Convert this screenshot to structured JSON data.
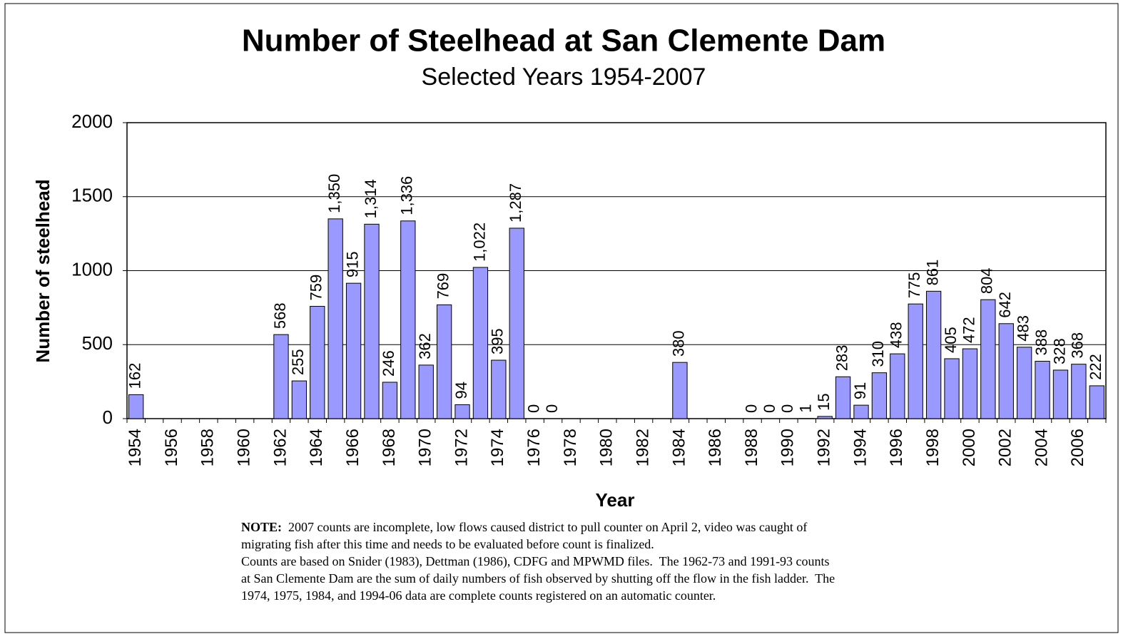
{
  "chart_data": {
    "type": "bar",
    "title": "Number of Steelhead at San Clemente Dam",
    "subtitle": "Selected Years 1954-2007",
    "y_label": "Number of steelhead",
    "x_label": "Year",
    "categories": [
      "1954",
      null,
      "1956",
      null,
      "1958",
      null,
      "1960",
      null,
      "1962",
      null,
      "1964",
      null,
      "1966",
      null,
      "1968",
      null,
      "1970",
      null,
      "1972",
      null,
      "1974",
      null,
      "1976",
      null,
      "1978",
      null,
      "1980",
      null,
      "1982",
      null,
      "1984",
      null,
      "1986",
      null,
      "1988",
      null,
      "1990",
      null,
      "1992",
      null,
      "1994",
      null,
      "1996",
      null,
      "1998",
      null,
      "2000",
      null,
      "2002",
      null,
      "2004",
      null,
      "2006",
      null
    ],
    "values": [
      162,
      null,
      null,
      null,
      null,
      null,
      null,
      null,
      568,
      255,
      759,
      1350,
      915,
      1314,
      246,
      1336,
      362,
      769,
      94,
      1022,
      395,
      1287,
      0,
      0,
      null,
      null,
      null,
      null,
      null,
      null,
      380,
      null,
      null,
      null,
      0,
      0,
      0,
      1,
      15,
      283,
      91,
      310,
      438,
      775,
      861,
      405,
      472,
      804,
      642,
      483,
      388,
      328,
      368,
      222
    ],
    "value_labels": [
      "162",
      null,
      null,
      null,
      null,
      null,
      null,
      null,
      "568",
      "255",
      "759",
      "1,350",
      "915",
      "1,314",
      "246",
      "1,336",
      "362",
      "769",
      "94",
      "1,022",
      "395",
      "1,287",
      "0",
      "0",
      null,
      null,
      null,
      null,
      null,
      null,
      "380",
      null,
      null,
      null,
      "0",
      "0",
      "0",
      "1",
      "15",
      "283",
      "91",
      "310",
      "438",
      "775",
      "861",
      "405",
      "472",
      "804",
      "642",
      "483",
      "388",
      "328",
      "368",
      "222"
    ],
    "color": "#9999ff",
    "ylim": [
      0,
      2000
    ],
    "yticks": [
      0,
      500,
      1000,
      1500,
      2000
    ],
    "grid": true
  },
  "note": {
    "label": "NOTE:",
    "lines": [
      "2007 counts are incomplete, low flows caused district to pull counter on April 2, video was caught of",
      "migrating fish after this time and needs to be evaluated before count is finalized.",
      "Counts are based on Snider (1983), Dettman (1986), CDFG and MPWMD files.  The 1962-73 and 1991-93 counts",
      "at San Clemente Dam are the sum of daily numbers of fish observed by shutting off the flow in the fish ladder.  The",
      "1974, 1975, 1984, and 1994-06 data are complete counts registered on an automatic counter."
    ]
  }
}
